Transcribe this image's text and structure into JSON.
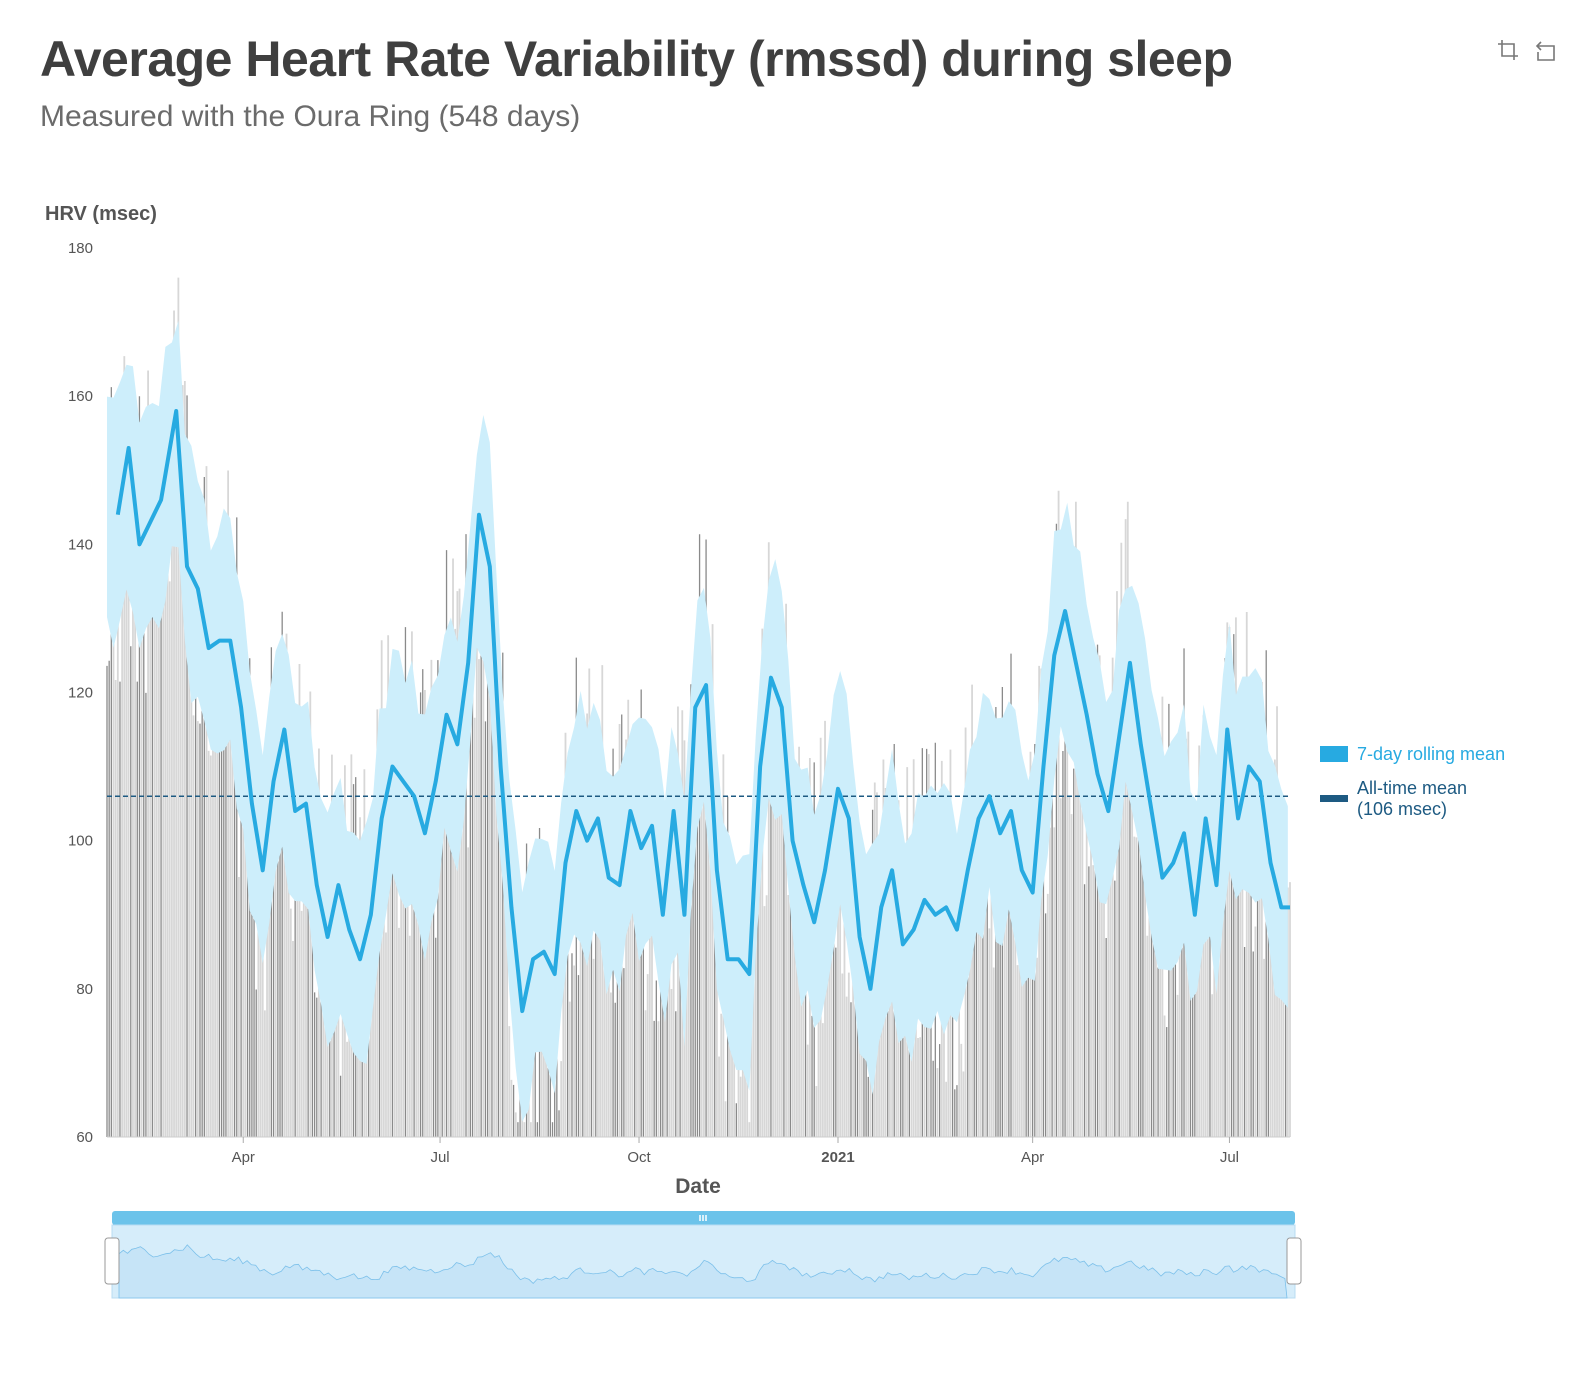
{
  "header": {
    "title": "Average Heart Rate Variability (rmssd) during sleep",
    "subtitle": "Measured with the Oura Ring (548 days)"
  },
  "toolbar": {
    "crop_icon": "crop-icon",
    "reset_icon": "undo-icon"
  },
  "colors": {
    "rolling_mean": "#27aae1",
    "band": "#cdeefb",
    "mean_line": "#1d5a82",
    "bars_light": "#d7d7d7",
    "bars_dark": "#8a8a8a",
    "navigator_fill": "#c6e4f7",
    "navigator_bar": "#6cc3ea"
  },
  "chart_data": {
    "type": "bar",
    "ylabel": "HRV (msec)",
    "xlabel": "Date",
    "ylim": [
      60,
      180
    ],
    "yticks": [
      60,
      80,
      100,
      120,
      140,
      160,
      180
    ],
    "x_range": [
      "2020-01-29",
      "2021-07-29"
    ],
    "xticks": [
      {
        "date": "2020-04-01",
        "label": "Apr",
        "bold": false
      },
      {
        "date": "2020-07-01",
        "label": "Jul",
        "bold": false
      },
      {
        "date": "2020-10-01",
        "label": "Oct",
        "bold": false
      },
      {
        "date": "2021-01-01",
        "label": "2021",
        "bold": true
      },
      {
        "date": "2021-04-01",
        "label": "Apr",
        "bold": false
      },
      {
        "date": "2021-07-01",
        "label": "Jul",
        "bold": false
      }
    ],
    "series": [
      {
        "name": "7-day rolling mean",
        "kind": "line",
        "points": [
          [
            "2020-02-03",
            144
          ],
          [
            "2020-02-08",
            153
          ],
          [
            "2020-02-13",
            140
          ],
          [
            "2020-02-18",
            143
          ],
          [
            "2020-02-23",
            146
          ],
          [
            "2020-03-01",
            158
          ],
          [
            "2020-03-06",
            137
          ],
          [
            "2020-03-11",
            134
          ],
          [
            "2020-03-16",
            126
          ],
          [
            "2020-03-21",
            127
          ],
          [
            "2020-03-26",
            127
          ],
          [
            "2020-03-31",
            118
          ],
          [
            "2020-04-05",
            105
          ],
          [
            "2020-04-10",
            96
          ],
          [
            "2020-04-15",
            108
          ],
          [
            "2020-04-20",
            115
          ],
          [
            "2020-04-25",
            104
          ],
          [
            "2020-04-30",
            105
          ],
          [
            "2020-05-05",
            94
          ],
          [
            "2020-05-10",
            87
          ],
          [
            "2020-05-15",
            94
          ],
          [
            "2020-05-20",
            88
          ],
          [
            "2020-05-25",
            84
          ],
          [
            "2020-05-30",
            90
          ],
          [
            "2020-06-04",
            103
          ],
          [
            "2020-06-09",
            110
          ],
          [
            "2020-06-14",
            108
          ],
          [
            "2020-06-19",
            106
          ],
          [
            "2020-06-24",
            101
          ],
          [
            "2020-06-29",
            108
          ],
          [
            "2020-07-04",
            117
          ],
          [
            "2020-07-09",
            113
          ],
          [
            "2020-07-14",
            124
          ],
          [
            "2020-07-19",
            144
          ],
          [
            "2020-07-24",
            137
          ],
          [
            "2020-07-29",
            110
          ],
          [
            "2020-08-03",
            91
          ],
          [
            "2020-08-08",
            77
          ],
          [
            "2020-08-13",
            84
          ],
          [
            "2020-08-18",
            85
          ],
          [
            "2020-08-23",
            82
          ],
          [
            "2020-08-28",
            97
          ],
          [
            "2020-09-02",
            104
          ],
          [
            "2020-09-07",
            100
          ],
          [
            "2020-09-12",
            103
          ],
          [
            "2020-09-17",
            95
          ],
          [
            "2020-09-22",
            94
          ],
          [
            "2020-09-27",
            104
          ],
          [
            "2020-10-02",
            99
          ],
          [
            "2020-10-07",
            102
          ],
          [
            "2020-10-12",
            90
          ],
          [
            "2020-10-17",
            104
          ],
          [
            "2020-10-22",
            90
          ],
          [
            "2020-10-27",
            118
          ],
          [
            "2020-11-01",
            121
          ],
          [
            "2020-11-06",
            96
          ],
          [
            "2020-11-11",
            84
          ],
          [
            "2020-11-16",
            84
          ],
          [
            "2020-11-21",
            82
          ],
          [
            "2020-11-26",
            110
          ],
          [
            "2020-12-01",
            122
          ],
          [
            "2020-12-06",
            118
          ],
          [
            "2020-12-11",
            100
          ],
          [
            "2020-12-16",
            94
          ],
          [
            "2020-12-21",
            89
          ],
          [
            "2020-12-26",
            96
          ],
          [
            "2021-01-01",
            107
          ],
          [
            "2021-01-06",
            103
          ],
          [
            "2021-01-11",
            87
          ],
          [
            "2021-01-16",
            80
          ],
          [
            "2021-01-21",
            91
          ],
          [
            "2021-01-26",
            96
          ],
          [
            "2021-01-31",
            86
          ],
          [
            "2021-02-05",
            88
          ],
          [
            "2021-02-10",
            92
          ],
          [
            "2021-02-15",
            90
          ],
          [
            "2021-02-20",
            91
          ],
          [
            "2021-02-25",
            88
          ],
          [
            "2021-03-02",
            96
          ],
          [
            "2021-03-07",
            103
          ],
          [
            "2021-03-12",
            106
          ],
          [
            "2021-03-17",
            101
          ],
          [
            "2021-03-22",
            104
          ],
          [
            "2021-03-27",
            96
          ],
          [
            "2021-04-01",
            93
          ],
          [
            "2021-04-06",
            110
          ],
          [
            "2021-04-11",
            125
          ],
          [
            "2021-04-16",
            131
          ],
          [
            "2021-04-21",
            124
          ],
          [
            "2021-04-26",
            117
          ],
          [
            "2021-05-01",
            109
          ],
          [
            "2021-05-06",
            104
          ],
          [
            "2021-05-11",
            114
          ],
          [
            "2021-05-16",
            124
          ],
          [
            "2021-05-21",
            113
          ],
          [
            "2021-05-26",
            104
          ],
          [
            "2021-05-31",
            95
          ],
          [
            "2021-06-05",
            97
          ],
          [
            "2021-06-10",
            101
          ],
          [
            "2021-06-15",
            90
          ],
          [
            "2021-06-20",
            103
          ],
          [
            "2021-06-25",
            94
          ],
          [
            "2021-06-30",
            115
          ],
          [
            "2021-07-05",
            103
          ],
          [
            "2021-07-10",
            110
          ],
          [
            "2021-07-15",
            108
          ],
          [
            "2021-07-20",
            97
          ],
          [
            "2021-07-25",
            91
          ],
          [
            "2021-07-29",
            91
          ]
        ]
      },
      {
        "name": "All-time mean",
        "legend_label": "All-time mean (106 msec)",
        "kind": "hline",
        "value": 106
      }
    ],
    "legend": {
      "position": "right",
      "items": [
        "7-day rolling mean",
        "All-time mean",
        "(106 msec)"
      ]
    }
  }
}
